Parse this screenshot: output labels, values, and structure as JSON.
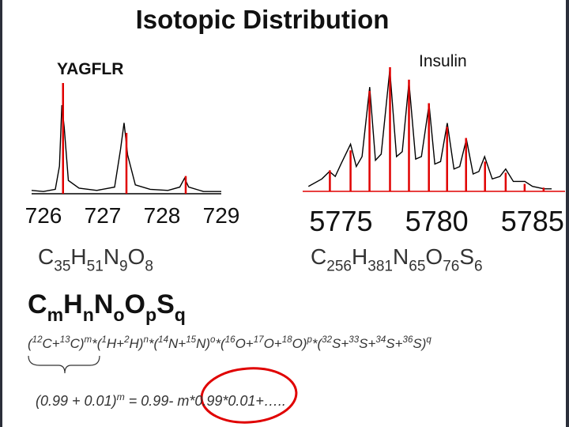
{
  "title": "Isotopic Distribution",
  "chart_data": [
    {
      "type": "spectrum",
      "title": "YAGFLR",
      "axis_color": "#000000",
      "xlim": [
        725.8,
        729
      ],
      "xticks": [
        726,
        727,
        728,
        729
      ],
      "ylim": [
        0,
        100
      ],
      "series": [
        {
          "style": "line",
          "color": "#000000",
          "x": [
            725.8,
            726.0,
            726.2,
            726.27,
            726.31,
            726.35,
            726.42,
            726.6,
            726.9,
            727.2,
            727.3,
            727.36,
            727.42,
            727.55,
            727.8,
            728.1,
            728.3,
            728.38,
            728.45,
            728.7,
            729.0
          ],
          "values": [
            3,
            2,
            4,
            25,
            80,
            60,
            12,
            5,
            3,
            6,
            40,
            64,
            35,
            8,
            4,
            3,
            6,
            14,
            6,
            2,
            2
          ]
        },
        {
          "style": "stick",
          "color": "#e00000",
          "x": [
            726.33,
            727.4,
            728.4
          ],
          "values": [
            100,
            55,
            16
          ]
        }
      ]
    },
    {
      "type": "spectrum",
      "title": "Insulin",
      "axis_color": "#e00000",
      "xlim": [
        5773,
        5786.7
      ],
      "xticks": [
        5775,
        5780,
        5785
      ],
      "ylim": [
        0,
        100
      ],
      "series": [
        {
          "style": "line",
          "color": "#000000",
          "x": [
            5773.3,
            5774.0,
            5774.4,
            5774.7,
            5775.0,
            5775.5,
            5775.8,
            5776.1,
            5776.5,
            5776.8,
            5777.1,
            5777.55,
            5777.9,
            5778.2,
            5778.55,
            5778.9,
            5779.2,
            5779.6,
            5779.9,
            5780.2,
            5780.55,
            5780.9,
            5781.2,
            5781.55,
            5781.9,
            5782.2,
            5782.5,
            5782.9,
            5783.3,
            5783.6,
            5784.0,
            5784.6,
            5785.0,
            5785.6,
            5786.0
          ],
          "values": [
            4,
            10,
            16,
            12,
            22,
            38,
            20,
            28,
            84,
            25,
            30,
            98,
            28,
            32,
            88,
            26,
            28,
            70,
            22,
            24,
            55,
            18,
            20,
            42,
            14,
            16,
            28,
            10,
            12,
            18,
            8,
            8,
            4,
            2,
            2
          ]
        },
        {
          "style": "stick",
          "color": "#e00000",
          "x": [
            5774.42,
            5775.5,
            5776.49,
            5777.56,
            5778.55,
            5779.59,
            5780.54,
            5781.53,
            5782.52,
            5783.6,
            5784.59,
            5785.58
          ],
          "values": [
            17,
            33,
            81,
            100,
            90,
            71,
            52,
            43,
            24,
            15,
            6,
            3
          ]
        }
      ]
    }
  ],
  "formulas": [
    [
      {
        "text": "C"
      },
      {
        "text": "35",
        "shift": "sub"
      },
      {
        "text": "H"
      },
      {
        "text": "51",
        "shift": "sub"
      },
      {
        "text": "N"
      },
      {
        "text": "9",
        "shift": "sub"
      },
      {
        "text": "O"
      },
      {
        "text": "8",
        "shift": "sub"
      }
    ],
    [
      {
        "text": "C"
      },
      {
        "text": "256",
        "shift": "sub"
      },
      {
        "text": "H"
      },
      {
        "text": "381",
        "shift": "sub"
      },
      {
        "text": "N"
      },
      {
        "text": "65",
        "shift": "sub"
      },
      {
        "text": "O"
      },
      {
        "text": "76",
        "shift": "sub"
      },
      {
        "text": "S"
      },
      {
        "text": "6",
        "shift": "sub"
      }
    ]
  ],
  "general_formula": [
    {
      "text": "C"
    },
    {
      "text": "m",
      "shift": "sub"
    },
    {
      "text": "H"
    },
    {
      "text": "n",
      "shift": "sub"
    },
    {
      "text": "N"
    },
    {
      "text": "o",
      "shift": "sub"
    },
    {
      "text": "O"
    },
    {
      "text": "p",
      "shift": "sub"
    },
    {
      "text": "S"
    },
    {
      "text": "q",
      "shift": "sub"
    }
  ],
  "isotope_expression": [
    {
      "text": "("
    },
    {
      "text": "12",
      "shift": "sup"
    },
    {
      "text": "C+"
    },
    {
      "text": "13",
      "shift": "sup"
    },
    {
      "text": "C)"
    },
    {
      "text": "m",
      "shift": "sup"
    },
    {
      "text": "*("
    },
    {
      "text": "1",
      "shift": "sup"
    },
    {
      "text": "H+"
    },
    {
      "text": "2",
      "shift": "sup"
    },
    {
      "text": "H)"
    },
    {
      "text": "n",
      "shift": "sup"
    },
    {
      "text": "*("
    },
    {
      "text": "14",
      "shift": "sup"
    },
    {
      "text": "N+"
    },
    {
      "text": "15",
      "shift": "sup"
    },
    {
      "text": "N)"
    },
    {
      "text": "o",
      "shift": "sup"
    },
    {
      "text": "*("
    },
    {
      "text": "16",
      "shift": "sup"
    },
    {
      "text": "O+"
    },
    {
      "text": "17",
      "shift": "sup"
    },
    {
      "text": "O+"
    },
    {
      "text": "18",
      "shift": "sup"
    },
    {
      "text": "O)"
    },
    {
      "text": "p",
      "shift": "sup"
    },
    {
      "text": "*("
    },
    {
      "text": "32",
      "shift": "sup"
    },
    {
      "text": "S+"
    },
    {
      "text": "33",
      "shift": "sup"
    },
    {
      "text": "S+"
    },
    {
      "text": "34",
      "shift": "sup"
    },
    {
      "text": "S+"
    },
    {
      "text": "36",
      "shift": "sup"
    },
    {
      "text": "S)"
    },
    {
      "text": "q",
      "shift": "sup"
    }
  ],
  "expansion": [
    {
      "text": "(0.99 + 0.01)"
    },
    {
      "text": "m",
      "shift": "sup"
    },
    {
      "text": " = 0.99- m*0.99*0.01+….."
    }
  ]
}
